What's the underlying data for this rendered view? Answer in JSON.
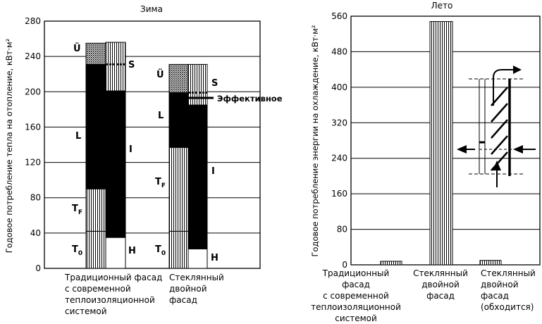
{
  "chart_data": [
    {
      "type": "bar",
      "title": "Зима",
      "ylabel": "Годовое потребление тепла на отопление, кВт·м²",
      "ylim": [
        0,
        280
      ],
      "yticks": [
        "0",
        "40",
        "80",
        "120",
        "160",
        "200",
        "240",
        "280"
      ],
      "grid": true,
      "categories": [
        [
          "Традиционный фасад",
          "с современной",
          "теплоизоляционной",
          "системой"
        ],
        [
          "Стеклянный",
          "двойной",
          "фасад"
        ]
      ],
      "series": [
        {
          "name": "T0",
          "values": [
            42,
            42
          ]
        },
        {
          "name": "TF",
          "values": [
            48,
            95
          ]
        },
        {
          "name": "L",
          "values": [
            141,
            62
          ]
        },
        {
          "name": "Ü",
          "values": [
            24,
            32
          ]
        },
        {
          "name": "H",
          "values": [
            35,
            22
          ]
        },
        {
          "name": "I",
          "values": [
            166,
            163
          ]
        },
        {
          "name": "S",
          "values": [
            55,
            46
          ]
        }
      ],
      "stack_totals": [
        256,
        232
      ],
      "annotations": {
        "left_labels": [
          "Ü",
          "L",
          "T",
          "T"
        ],
        "left_subscripts": [
          "",
          "",
          "F",
          "0"
        ],
        "right_labels": [
          "S",
          "I",
          "H"
        ],
        "effective": "Эффективное",
        "effective_value": 193
      }
    },
    {
      "type": "bar",
      "title": "Лето",
      "ylabel": "Годовое потребление энергии на охлаждение, кВт·м²",
      "ylim": [
        0,
        560
      ],
      "yticks": [
        "0",
        "80",
        "160",
        "240",
        "320",
        "400",
        "480",
        "560"
      ],
      "grid": true,
      "categories": [
        [
          "Традиционный",
          "фасад",
          "с современной",
          "теплоизоляционной",
          "системой"
        ],
        [
          "Стеклянный",
          "двойной",
          "фасад"
        ],
        [
          "Стеклянный",
          "двойной",
          "фасад",
          "(обходится)"
        ]
      ],
      "values": [
        8,
        548,
        10
      ]
    }
  ],
  "colors": {
    "ink": "#000000",
    "grid": "#000000",
    "fill_light": "#ffffff"
  }
}
